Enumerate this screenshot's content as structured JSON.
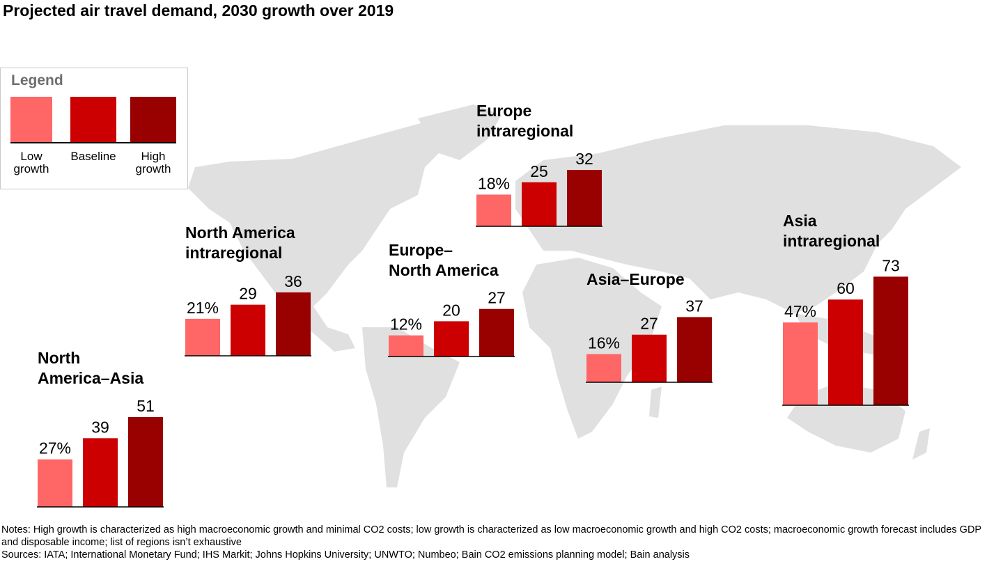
{
  "title": "Projected air travel demand, 2030 growth over 2019",
  "legend": {
    "title": "Legend",
    "items": [
      {
        "label": "Low growth",
        "color": "#FF6666"
      },
      {
        "label": "Baseline",
        "color": "#CC0000"
      },
      {
        "label": "High growth",
        "color": "#990000"
      }
    ]
  },
  "chart_data": {
    "type": "bar",
    "unit": "%",
    "series_names": [
      "Low growth",
      "Baseline",
      "High growth"
    ],
    "colors": [
      "#FF6666",
      "#CC0000",
      "#990000"
    ],
    "background": "world map (light gray)",
    "groups": [
      {
        "title_lines": [
          "North",
          "America–Asia"
        ],
        "values": [
          27,
          39,
          51
        ],
        "labels": [
          "27%",
          "39",
          "51"
        ]
      },
      {
        "title_lines": [
          "North America",
          "intraregional"
        ],
        "values": [
          21,
          29,
          36
        ],
        "labels": [
          "21%",
          "29",
          "36"
        ]
      },
      {
        "title_lines": [
          "Europe–",
          "North America"
        ],
        "values": [
          12,
          20,
          27
        ],
        "labels": [
          "12%",
          "20",
          "27"
        ]
      },
      {
        "title_lines": [
          "Europe",
          "intraregional"
        ],
        "values": [
          18,
          25,
          32
        ],
        "labels": [
          "18%",
          "25",
          "32"
        ]
      },
      {
        "title_lines": [
          "Asia–Europe"
        ],
        "values": [
          16,
          27,
          37
        ],
        "labels": [
          "16%",
          "27",
          "37"
        ]
      },
      {
        "title_lines": [
          "Asia",
          "intraregional"
        ],
        "values": [
          47,
          60,
          73
        ],
        "labels": [
          "47%",
          "60",
          "73"
        ]
      }
    ]
  },
  "notes": "Notes: High growth is characterized as high macroeconomic growth and minimal CO2 costs; low growth is characterized as low macroeconomic growth and high CO2 costs; macroeconomic growth forecast includes GDP and disposable income; list of regions isn’t exhaustive",
  "sources": "Sources: IATA; International Monetary Fund; IHS Markit; Johns Hopkins University; UNWTO; Numbeo; Bain CO2 emissions planning model; Bain analysis"
}
